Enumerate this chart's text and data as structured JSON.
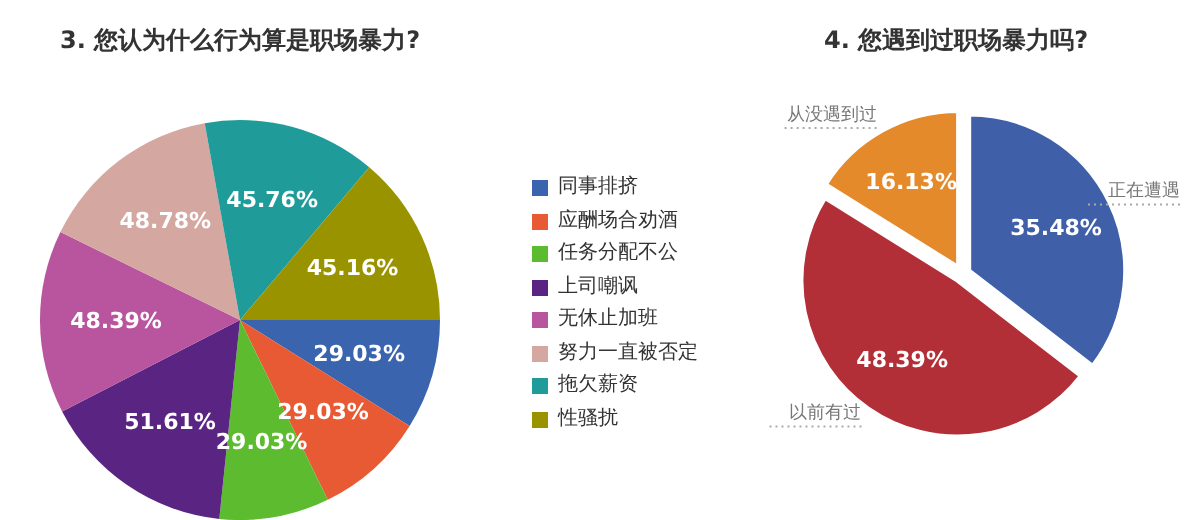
{
  "chart_data": [
    {
      "type": "pie",
      "title": "3. 您认为什么行为算是职场暴力?",
      "categories": [
        "同事排挤",
        "应酬场合劝酒",
        "任务分配不公",
        "上司嘲讽",
        "无休止加班",
        "努力一直被否定",
        "拖欠薪资",
        "性骚扰"
      ],
      "values": [
        29.03,
        29.03,
        29.03,
        51.61,
        48.39,
        48.78,
        45.76,
        45.16
      ],
      "colors": [
        "#3a64ad",
        "#e85a33",
        "#5cbb2f",
        "#5a2483",
        "#b9549f",
        "#d4a7a0",
        "#1f9c9a",
        "#9a9300"
      ],
      "value_labels": [
        "29.03%",
        "29.03%",
        "29.03%",
        "51.61%",
        "48.39%",
        "48.78%",
        "45.76%",
        "45.16%"
      ],
      "legend": "right"
    },
    {
      "type": "pie",
      "title": "4. 您遇到过职场暴力吗?",
      "categories": [
        "正在遭遇",
        "以前有过",
        "从没遇到过"
      ],
      "values": [
        35.48,
        48.39,
        16.13
      ],
      "colors": [
        "#3f5fa8",
        "#b32f37",
        "#e58a2a"
      ],
      "value_labels": [
        "35.48%",
        "48.39%",
        "16.13%"
      ]
    }
  ]
}
